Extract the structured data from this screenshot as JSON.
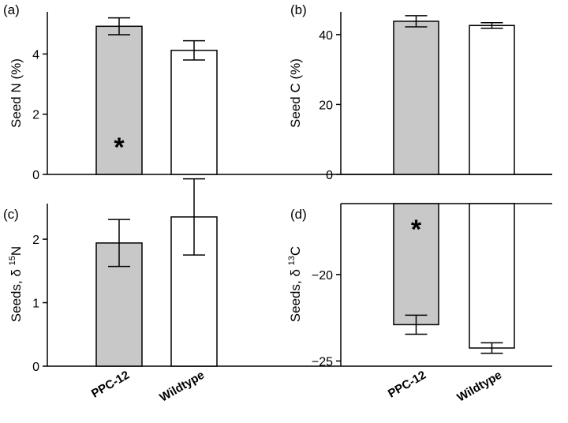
{
  "colors": {
    "treated": "#c8c8c8",
    "control": "#ffffff",
    "stroke": "#000000"
  },
  "categories": [
    "PPC-12",
    "Wildtype"
  ],
  "chart_data": [
    {
      "type": "bar",
      "panel": "(a)",
      "ylabel": "Seed N (%)",
      "categories": [
        "PPC-12",
        "Wildtype"
      ],
      "values": [
        4.92,
        4.12
      ],
      "errors": [
        0.28,
        0.32
      ],
      "yticks": [
        0,
        2,
        4
      ],
      "ylim": [
        0,
        5.4
      ],
      "significance": [
        "*",
        ""
      ]
    },
    {
      "type": "bar",
      "panel": "(b)",
      "ylabel": "Seed C (%)",
      "categories": [
        "PPC-12",
        "Wildtype"
      ],
      "values": [
        43.8,
        42.6
      ],
      "errors": [
        1.6,
        0.8
      ],
      "yticks": [
        0,
        20,
        40
      ],
      "ylim": [
        0,
        46.5
      ],
      "significance": [
        "",
        ""
      ]
    },
    {
      "type": "bar",
      "panel": "(c)",
      "ylabel_parts": [
        "Seeds, δ ",
        "15",
        "N"
      ],
      "categories": [
        "PPC-12",
        "Wildtype"
      ],
      "values": [
        1.94,
        2.35
      ],
      "errors": [
        0.37,
        0.6
      ],
      "yticks": [
        0,
        1,
        2
      ],
      "ylim": [
        0,
        2.56
      ],
      "significance": [
        "",
        ""
      ]
    },
    {
      "type": "bar",
      "panel": "(d)",
      "ylabel_parts": [
        "Seeds, δ ",
        "13",
        "C"
      ],
      "categories": [
        "PPC-12",
        "Wildtype"
      ],
      "values": [
        -22.9,
        -24.25
      ],
      "errors": [
        0.55,
        0.3
      ],
      "yticks": [
        -20,
        -25
      ],
      "ylim": [
        -25.3,
        -15.9
      ],
      "significance": [
        "*",
        ""
      ]
    }
  ]
}
